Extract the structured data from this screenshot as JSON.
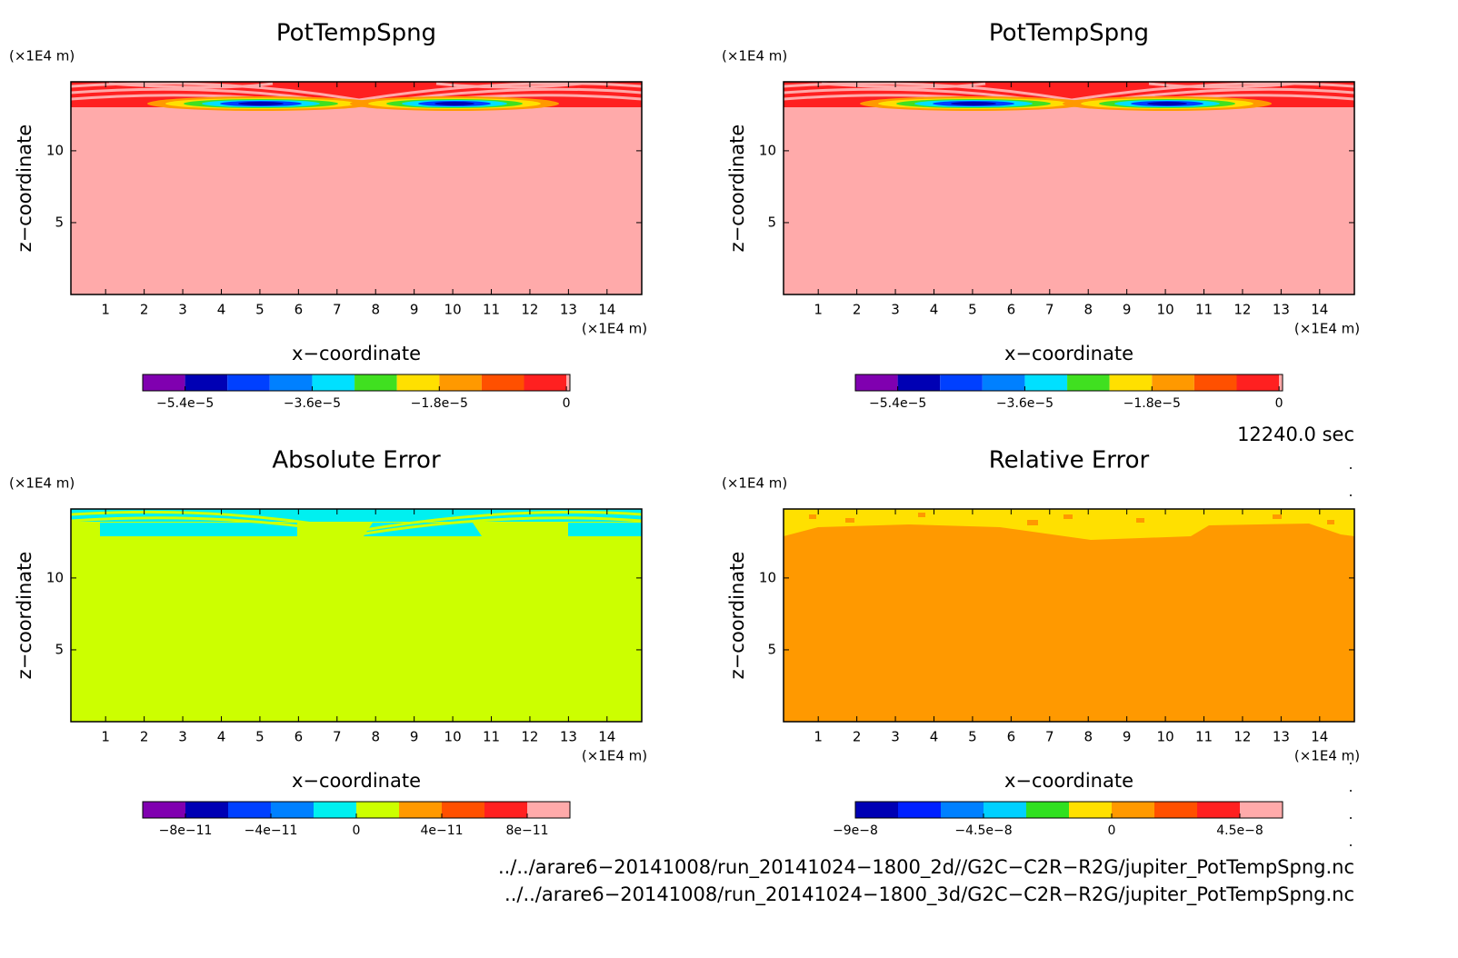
{
  "chart_data": [
    {
      "type": "contour",
      "title": "PotTempSpng",
      "x_label": "x−coordinate",
      "y_label": "z−coordinate",
      "x_unit": "(×1E4 m)",
      "y_unit": "(×1E4 m)",
      "xlim": [
        0.1,
        14.9
      ],
      "ylim": [
        0,
        14.8
      ],
      "xticks": [
        1,
        2,
        3,
        4,
        5,
        6,
        7,
        8,
        9,
        10,
        11,
        12,
        13,
        14
      ],
      "yticks": [
        5,
        10
      ],
      "colorbar": {
        "bins": [
          -6e-05,
          -5.4e-05,
          -4.8e-05,
          -4.2e-05,
          -3.6e-05,
          -3e-05,
          -2.4e-05,
          -1.8e-05,
          -1.2e-05,
          -6e-06,
          0,
          5e-07
        ],
        "colors": [
          "#8000b0",
          "#0000b4",
          "#0040ff",
          "#0080ff",
          "#00e0ff",
          "#40e020",
          "#ffe000",
          "#ff9900",
          "#ff5000",
          "#ff2020",
          "#ffaaaa"
        ],
        "ticks": [
          {
            "value": -5.4e-05,
            "label": "−5.4e−5"
          },
          {
            "value": -3.6e-05,
            "label": "−3.6e−5"
          },
          {
            "value": -1.8e-05,
            "label": "−1.8e−5"
          },
          0
        ]
      }
    },
    {
      "type": "contour",
      "title": "PotTempSpng",
      "x_label": "x−coordinate",
      "y_label": "z−coordinate",
      "x_unit": "(×1E4 m)",
      "y_unit": "(×1E4 m)",
      "xlim": [
        0.1,
        14.9
      ],
      "ylim": [
        0,
        14.8
      ],
      "xticks": [
        1,
        2,
        3,
        4,
        5,
        6,
        7,
        8,
        9,
        10,
        11,
        12,
        13,
        14
      ],
      "yticks": [
        5,
        10
      ],
      "colorbar": {
        "bins": [
          -6e-05,
          -5.4e-05,
          -4.8e-05,
          -4.2e-05,
          -3.6e-05,
          -3e-05,
          -2.4e-05,
          -1.8e-05,
          -1.2e-05,
          -6e-06,
          0,
          5e-07
        ],
        "colors": [
          "#8000b0",
          "#0000b4",
          "#0040ff",
          "#0080ff",
          "#00e0ff",
          "#40e020",
          "#ffe000",
          "#ff9900",
          "#ff5000",
          "#ff2020",
          "#ffaaaa"
        ],
        "ticks": [
          {
            "value": -5.4e-05,
            "label": "−5.4e−5"
          },
          {
            "value": -3.6e-05,
            "label": "−3.6e−5"
          },
          {
            "value": -1.8e-05,
            "label": "−1.8e−5"
          },
          0
        ]
      }
    },
    {
      "type": "contour",
      "title": "Absolute Error",
      "x_label": "x−coordinate",
      "y_label": "z−coordinate",
      "x_unit": "(×1E4 m)",
      "y_unit": "(×1E4 m)",
      "xlim": [
        0.1,
        14.9
      ],
      "ylim": [
        0,
        14.8
      ],
      "xticks": [
        1,
        2,
        3,
        4,
        5,
        6,
        7,
        8,
        9,
        10,
        11,
        12,
        13,
        14
      ],
      "yticks": [
        5,
        10
      ],
      "colorbar": {
        "bins": [
          -1e-10,
          -8e-11,
          -6e-11,
          -4e-11,
          -2e-11,
          0,
          2e-11,
          4e-11,
          6e-11,
          8e-11,
          1e-10
        ],
        "colors": [
          "#8000b0",
          "#0000b4",
          "#0040ff",
          "#0080ff",
          "#00f0f0",
          "#ccff00",
          "#ff9900",
          "#ff5000",
          "#ff2020",
          "#ffaaaa"
        ],
        "ticks": [
          {
            "value": -8e-11,
            "label": "−8e−11"
          },
          {
            "value": -4e-11,
            "label": "−4e−11"
          },
          0,
          {
            "value": 4e-11,
            "label": "4e−11"
          },
          {
            "value": 8e-11,
            "label": "8e−11"
          }
        ]
      }
    },
    {
      "type": "contour",
      "title": "Relative Error",
      "x_label": "x−coordinate",
      "y_label": "z−coordinate",
      "x_unit": "(×1E4 m)",
      "y_unit": "(×1E4 m)",
      "xlim": [
        0.1,
        14.9
      ],
      "ylim": [
        0,
        14.8
      ],
      "xticks": [
        1,
        2,
        3,
        4,
        5,
        6,
        7,
        8,
        9,
        10,
        11,
        12,
        13,
        14
      ],
      "yticks": [
        5,
        10
      ],
      "colorbar": {
        "bins": [
          -9e-08,
          -7.5e-08,
          -6e-08,
          -4.5e-08,
          -3e-08,
          -1.5e-08,
          0,
          1.5e-08,
          3e-08,
          4.5e-08,
          6e-08
        ],
        "colors": [
          "#0000b4",
          "#0020ff",
          "#0080ff",
          "#00d0ff",
          "#30e020",
          "#ffe000",
          "#ff9900",
          "#ff5000",
          "#ff2020",
          "#ffaaaa"
        ],
        "ticks": [
          {
            "value": -9e-08,
            "label": "−9e−8"
          },
          {
            "value": -4.5e-08,
            "label": "−4.5e−8"
          },
          0,
          {
            "value": 4.5e-08,
            "label": "4.5e−8"
          }
        ]
      }
    }
  ],
  "time_label": "12240.0 sec",
  "files": [
    "../../arare6−20141008/run_20141024−1800_2d//G2C−C2R−R2G/jupiter_PotTempSpng.nc",
    "../../arare6−20141008/run_20141024−1800_3d/G2C−C2R−R2G/jupiter_PotTempSpng.nc"
  ]
}
